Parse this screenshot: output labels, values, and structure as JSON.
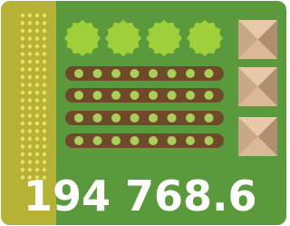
{
  "label": "194 768.6"
}
